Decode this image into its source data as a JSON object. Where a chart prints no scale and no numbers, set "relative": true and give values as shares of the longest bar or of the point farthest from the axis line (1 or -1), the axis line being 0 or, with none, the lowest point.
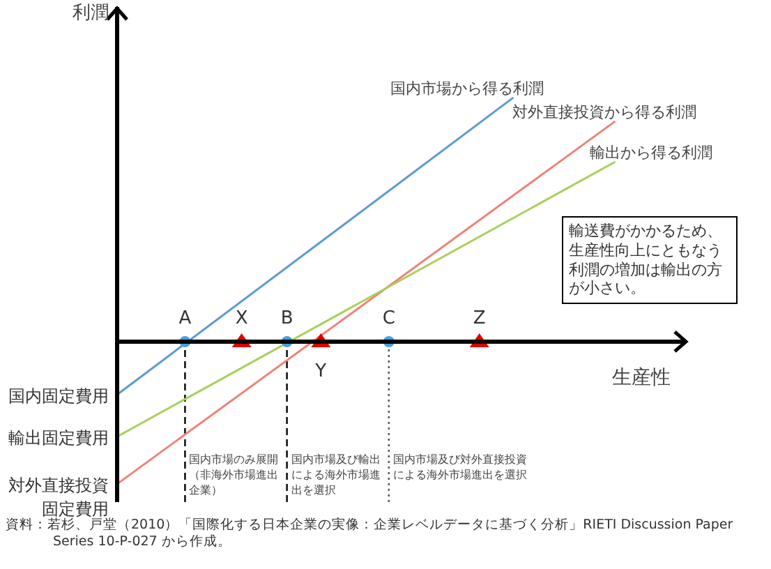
{
  "chart_data": {
    "type": "line",
    "relative": true,
    "xlabel": "生産性",
    "ylabel": "利潤",
    "tick_labels": "x",
    "marker": "none",
    "line_style": "solid",
    "categories": [
      null,
      null,
      null,
      null,
      null,
      null,
      "A",
      null,
      null,
      null,
      null,
      "X",
      null,
      null,
      null,
      "B",
      null,
      null,
      "Y",
      null,
      null,
      null,
      null,
      null,
      "C",
      null,
      null,
      null,
      null,
      null,
      null,
      null,
      "Z",
      null,
      null,
      null,
      null,
      null,
      null,
      null,
      null,
      null,
      null,
      null,
      null,
      null,
      null,
      null,
      null,
      null,
      null
    ],
    "series": [
      {
        "name": "国内市場から得る利潤",
        "color": "#5b9bd5",
        "values": [
          -0.217,
          null,
          null,
          null,
          null,
          null,
          null,
          null,
          null,
          null,
          null,
          null,
          null,
          null,
          null,
          null,
          null,
          null,
          null,
          null,
          null,
          null,
          null,
          null,
          null,
          null,
          null,
          null,
          null,
          null,
          null,
          null,
          null,
          null,
          null,
          1,
          null,
          null,
          null,
          null,
          null,
          null,
          null,
          null,
          null,
          null,
          null,
          null,
          null,
          null,
          null
        ]
      },
      {
        "name": "対外直接投資から得る利潤",
        "color": "#f08278",
        "values": [
          -0.583,
          null,
          null,
          null,
          null,
          null,
          null,
          null,
          null,
          null,
          null,
          null,
          null,
          null,
          null,
          null,
          null,
          null,
          null,
          null,
          null,
          null,
          null,
          null,
          null,
          null,
          null,
          null,
          null,
          null,
          null,
          null,
          null,
          null,
          null,
          null,
          null,
          null,
          null,
          null,
          null,
          null,
          null,
          null,
          0.903,
          null,
          null,
          null,
          null,
          null,
          null
        ]
      },
      {
        "name": "輸出から得る利潤",
        "color": "#a8cf5a",
        "values": [
          -0.389,
          null,
          null,
          null,
          null,
          null,
          null,
          null,
          null,
          null,
          null,
          null,
          null,
          null,
          null,
          null,
          null,
          null,
          null,
          null,
          null,
          null,
          null,
          null,
          null,
          null,
          null,
          null,
          null,
          null,
          null,
          null,
          null,
          null,
          null,
          null,
          null,
          null,
          null,
          null,
          null,
          null,
          null,
          null,
          0.737,
          null,
          null,
          null,
          null,
          null,
          null
        ]
      },
      {
        "type": "scatter",
        "marker": "circle",
        "color": "#4a9fdc",
        "values": [
          null,
          null,
          null,
          null,
          null,
          null,
          0,
          null,
          null,
          null,
          null,
          null,
          null,
          null,
          null,
          0,
          null,
          null,
          null,
          null,
          null,
          null,
          null,
          null,
          0,
          null,
          null,
          null,
          null,
          null,
          null,
          null,
          null,
          null,
          null,
          null,
          null,
          null,
          null,
          null,
          null,
          null,
          null,
          null,
          null,
          null,
          null,
          null,
          null,
          null,
          null
        ]
      },
      {
        "type": "scatter",
        "marker": "triangle",
        "color": "#e00000",
        "values": [
          null,
          null,
          null,
          null,
          null,
          null,
          null,
          null,
          null,
          null,
          null,
          0,
          null,
          null,
          null,
          null,
          null,
          null,
          0,
          null,
          null,
          null,
          null,
          null,
          null,
          null,
          null,
          null,
          null,
          null,
          null,
          null,
          0,
          null,
          null,
          null,
          null,
          null,
          null,
          null,
          null,
          null,
          null,
          null,
          null,
          null,
          null,
          null,
          null,
          null,
          null
        ]
      }
    ],
    "ref_lines": [
      {
        "axis": "x",
        "value": "A",
        "label": "国内市場のみ展開（非海外市場進出企業）",
        "line_style": "dashed",
        "color": "#000000"
      },
      {
        "axis": "x",
        "value": "B",
        "label": "国内市場及び輸出による海外市場進出を選択",
        "line_style": "dashed",
        "color": "#000000"
      },
      {
        "axis": "x",
        "value": "C",
        "label": "国内市場及び対外直接投資による海外市場進出を選択",
        "line_style": "dotted",
        "color": "#555555"
      }
    ],
    "annotations": [
      "国内固定費用",
      "輸出固定費用",
      "対外直接投資固定費用",
      "輸送費がかかるため、生産性向上にともなう利潤の増加は輸出の方が小さい。",
      "資料：若杉、戸堂（2010）「国際化する日本企業の実像：企業レベルデータに基づく分析」RIETI Discussion Paper Series 10-P-027 から作成。"
    ]
  }
}
